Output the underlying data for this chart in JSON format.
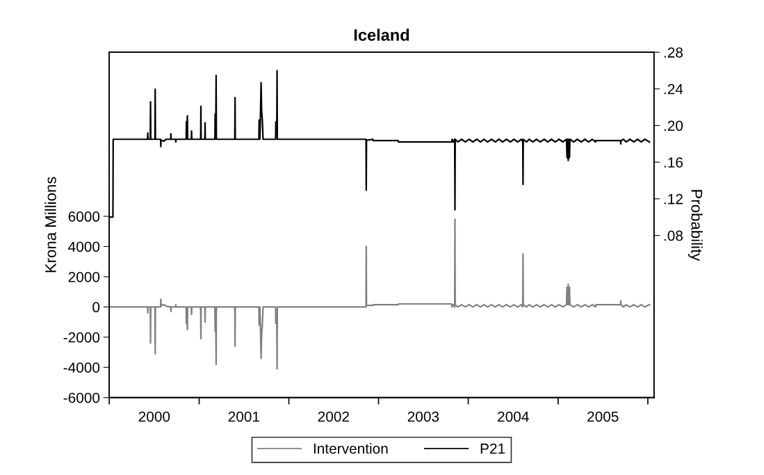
{
  "chart_data": {
    "type": "line",
    "title": "Iceland",
    "ylabel": "Krona Millions",
    "y2label": "Probability",
    "xlim": [
      "2000-01-01",
      "2006-01-26"
    ],
    "xticks": [
      {
        "value": "2000-01-01",
        "label": null
      },
      {
        "value": "2000-07-02",
        "label": "2000"
      },
      {
        "value": "2001-01-01",
        "label": null
      },
      {
        "value": "2001-07-02",
        "label": "2001"
      },
      {
        "value": "2002-01-01",
        "label": null
      },
      {
        "value": "2002-07-02",
        "label": "2002"
      },
      {
        "value": "2003-01-01",
        "label": null
      },
      {
        "value": "2003-07-02",
        "label": "2003"
      },
      {
        "value": "2004-01-01",
        "label": null
      },
      {
        "value": "2004-07-02",
        "label": "2004"
      },
      {
        "value": "2005-01-01",
        "label": null
      },
      {
        "value": "2005-07-02",
        "label": "2005"
      },
      {
        "value": "2006-01-01",
        "label": null
      }
    ],
    "ylim": [
      -6000,
      16860
    ],
    "yticks": [
      -6000,
      -4000,
      -2000,
      0,
      2000,
      4000,
      6000
    ],
    "y2lim": [
      -0.097,
      0.28
    ],
    "y2ticks": [
      {
        "value": 0.08,
        "label": ".08"
      },
      {
        "value": 0.12,
        "label": ".12"
      },
      {
        "value": 0.16,
        "label": ".16"
      },
      {
        "value": 0.2,
        "label": ".20"
      },
      {
        "value": 0.24,
        "label": ".24"
      },
      {
        "value": 0.28,
        "label": ".28"
      }
    ],
    "grid": false,
    "legend": "bottom",
    "marker": "none",
    "line_style": "solid",
    "series": [
      {
        "name": "Intervention",
        "color": "#808080",
        "axis": "y",
        "x": [
          "2000-01-01",
          "2000-06-05",
          "2000-06-06",
          "2000-06-07",
          "2000-06-16",
          "2000-06-17",
          "2000-06-18",
          "2000-07-05",
          "2000-07-06",
          "2000-07-07",
          "2000-07-28",
          "2000-07-29",
          "2000-07-30",
          "2000-08-10",
          "2000-08-20",
          "2000-09-07",
          "2000-09-08",
          "2000-09-09",
          "2000-09-27",
          "2000-09-28",
          "2000-09-29",
          "2000-11-09",
          "2000-11-10",
          "2000-11-13",
          "2000-11-14",
          "2000-11-15",
          "2000-11-30",
          "2000-12-01",
          "2000-12-02",
          "2001-01-07",
          "2001-01-08",
          "2001-01-09",
          "2001-01-24",
          "2001-01-25",
          "2001-01-26",
          "2001-03-06",
          "2001-03-07",
          "2001-03-10",
          "2001-03-11",
          "2001-03-12",
          "2001-05-26",
          "2001-05-27",
          "2001-05-28",
          "2001-09-01",
          "2001-09-02",
          "2001-09-05",
          "2001-09-07",
          "2001-09-10",
          "2001-09-12",
          "2001-09-15",
          "2001-09-18",
          "2001-11-08",
          "2001-11-09",
          "2001-11-13",
          "2001-11-14",
          "2001-11-15",
          "2002-11-11",
          "2002-11-12",
          "2002-11-13",
          "2002-12-09",
          "2002-12-10",
          "2003-03-22",
          "2003-03-23",
          "2003-10-26",
          "2003-10-27",
          "2003-11-01",
          "2003-11-07",
          "2003-11-08",
          "2003-11-09",
          "2003-11-20",
          "2003-12-05",
          "2003-12-20",
          "2004-01-05",
          "2004-01-20",
          "2004-02-05",
          "2004-02-20",
          "2004-03-05",
          "2004-03-20",
          "2004-04-05",
          "2004-04-20",
          "2004-05-05",
          "2004-05-20",
          "2004-06-05",
          "2004-06-20",
          "2004-07-05",
          "2004-07-20",
          "2004-08-05",
          "2004-08-10",
          "2004-08-11",
          "2004-08-12",
          "2004-08-25",
          "2004-09-05",
          "2004-09-20",
          "2004-10-05",
          "2004-10-20",
          "2004-11-05",
          "2004-11-20",
          "2004-12-05",
          "2004-12-20",
          "2005-01-05",
          "2005-01-20",
          "2005-02-04",
          "2005-02-06",
          "2005-02-09",
          "2005-02-11",
          "2005-02-14",
          "2005-02-16",
          "2005-02-18",
          "2005-03-05",
          "2005-03-20",
          "2005-04-05",
          "2005-04-20",
          "2005-05-05",
          "2005-05-20",
          "2005-06-02",
          "2005-06-03",
          "2005-09-12",
          "2005-09-13",
          "2005-09-14",
          "2005-09-24",
          "2005-10-05",
          "2005-10-20",
          "2005-11-05",
          "2005-11-20",
          "2005-12-05",
          "2005-12-20",
          "2006-01-08"
        ],
        "values": [
          0,
          0,
          -400,
          0,
          0,
          -2400,
          0,
          0,
          -3100,
          0,
          0,
          500,
          100,
          150,
          50,
          0,
          -300,
          0,
          0,
          150,
          0,
          0,
          -1100,
          -1100,
          -1500,
          0,
          0,
          -500,
          0,
          0,
          -2100,
          0,
          0,
          -1000,
          0,
          0,
          -1600,
          -1600,
          -3800,
          0,
          0,
          -2600,
          0,
          0,
          -1200,
          0,
          -1200,
          -3400,
          -1900,
          -1200,
          0,
          0,
          -1100,
          -1100,
          -4100,
          0,
          0,
          4000,
          100,
          100,
          150,
          150,
          200,
          200,
          0,
          150,
          0,
          5800,
          150,
          0,
          150,
          0,
          150,
          0,
          150,
          0,
          150,
          0,
          150,
          0,
          150,
          0,
          150,
          0,
          150,
          0,
          150,
          0,
          3500,
          150,
          0,
          150,
          0,
          150,
          0,
          150,
          0,
          150,
          0,
          150,
          0,
          150,
          1300,
          150,
          1500,
          150,
          1300,
          150,
          0,
          150,
          0,
          150,
          0,
          150,
          0,
          150,
          150,
          400,
          150,
          0,
          150,
          0,
          150,
          0,
          150,
          0,
          150
        ]
      },
      {
        "name": "P21",
        "color": "#000000",
        "axis": "y2",
        "x": [
          "2000-01-01",
          "2000-01-16",
          "2000-01-17",
          "2000-06-05",
          "2000-06-06",
          "2000-06-07",
          "2000-06-16",
          "2000-06-17",
          "2000-06-18",
          "2000-07-05",
          "2000-07-06",
          "2000-07-07",
          "2000-07-28",
          "2000-07-29",
          "2000-07-30",
          "2000-08-10",
          "2000-08-20",
          "2000-09-07",
          "2000-09-08",
          "2000-09-09",
          "2000-09-27",
          "2000-09-28",
          "2000-09-29",
          "2000-11-09",
          "2000-11-10",
          "2000-11-13",
          "2000-11-14",
          "2000-11-15",
          "2000-11-30",
          "2000-12-01",
          "2000-12-02",
          "2001-01-07",
          "2001-01-08",
          "2001-01-09",
          "2001-01-24",
          "2001-01-25",
          "2001-01-26",
          "2001-03-06",
          "2001-03-07",
          "2001-03-10",
          "2001-03-11",
          "2001-03-12",
          "2001-05-26",
          "2001-05-27",
          "2001-05-28",
          "2001-09-01",
          "2001-09-02",
          "2001-09-05",
          "2001-09-07",
          "2001-09-10",
          "2001-09-12",
          "2001-09-15",
          "2001-09-18",
          "2001-11-08",
          "2001-11-09",
          "2001-11-13",
          "2001-11-14",
          "2001-11-15",
          "2002-11-11",
          "2002-11-12",
          "2002-11-13",
          "2002-12-09",
          "2002-12-10",
          "2003-03-22",
          "2003-03-23",
          "2003-10-26",
          "2003-10-27",
          "2003-11-01",
          "2003-11-07",
          "2003-11-08",
          "2003-11-09",
          "2003-11-20",
          "2003-12-05",
          "2003-12-20",
          "2004-01-05",
          "2004-01-20",
          "2004-02-05",
          "2004-02-20",
          "2004-03-05",
          "2004-03-20",
          "2004-04-05",
          "2004-04-20",
          "2004-05-05",
          "2004-05-20",
          "2004-06-05",
          "2004-06-20",
          "2004-07-05",
          "2004-07-20",
          "2004-08-05",
          "2004-08-10",
          "2004-08-11",
          "2004-08-12",
          "2004-08-25",
          "2004-09-05",
          "2004-09-20",
          "2004-10-05",
          "2004-10-20",
          "2004-11-05",
          "2004-11-20",
          "2004-12-05",
          "2004-12-20",
          "2005-01-05",
          "2005-01-20",
          "2005-02-04",
          "2005-02-06",
          "2005-02-09",
          "2005-02-11",
          "2005-02-14",
          "2005-02-16",
          "2005-02-18",
          "2005-03-05",
          "2005-03-20",
          "2005-04-05",
          "2005-04-20",
          "2005-05-05",
          "2005-05-20",
          "2005-06-02",
          "2005-06-03",
          "2005-09-12",
          "2005-09-13",
          "2005-09-14",
          "2005-09-24",
          "2005-10-05",
          "2005-10-20",
          "2005-11-05",
          "2005-11-20",
          "2005-12-05",
          "2005-12-20",
          "2006-01-08"
        ],
        "values": [
          0.1,
          0.1,
          0.185,
          0.185,
          0.192,
          0.185,
          0.185,
          0.226,
          0.185,
          0.185,
          0.2395,
          0.185,
          0.185,
          0.177,
          0.184,
          0.183,
          0.185,
          0.185,
          0.191,
          0.185,
          0.185,
          0.182,
          0.185,
          0.185,
          0.204,
          0.204,
          0.2105,
          0.185,
          0.185,
          0.194,
          0.185,
          0.185,
          0.221,
          0.185,
          0.185,
          0.203,
          0.185,
          0.185,
          0.2126,
          0.2126,
          0.2546,
          0.185,
          0.185,
          0.2305,
          0.185,
          0.185,
          0.206,
          0.185,
          0.206,
          0.2468,
          0.217,
          0.206,
          0.185,
          0.185,
          0.204,
          0.204,
          0.2598,
          0.185,
          0.185,
          0.1293,
          0.184,
          0.185,
          0.1836,
          0.1836,
          0.182,
          0.182,
          0.185,
          0.182,
          0.185,
          0.108,
          0.185,
          0.182,
          0.185,
          0.182,
          0.185,
          0.182,
          0.185,
          0.182,
          0.185,
          0.182,
          0.185,
          0.182,
          0.185,
          0.182,
          0.185,
          0.182,
          0.185,
          0.182,
          0.185,
          0.182,
          0.1357,
          0.185,
          0.182,
          0.185,
          0.182,
          0.185,
          0.182,
          0.185,
          0.182,
          0.185,
          0.182,
          0.185,
          0.182,
          0.185,
          0.165,
          0.185,
          0.1618,
          0.185,
          0.165,
          0.185,
          0.182,
          0.185,
          0.182,
          0.185,
          0.182,
          0.185,
          0.182,
          0.1835,
          0.1835,
          0.18,
          0.1835,
          0.185,
          0.182,
          0.185,
          0.182,
          0.185,
          0.182,
          0.185,
          0.182
        ]
      }
    ]
  }
}
